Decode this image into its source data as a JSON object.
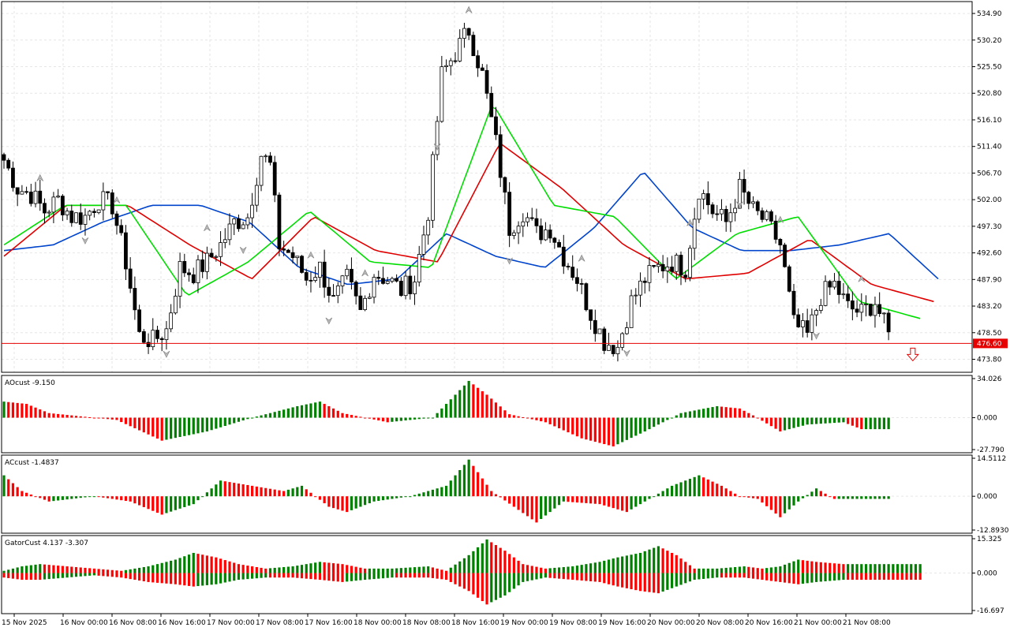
{
  "price_axis": {
    "ticks": [
      "534.90",
      "530.20",
      "525.50",
      "520.80",
      "516.10",
      "511.40",
      "506.70",
      "502.00",
      "497.30",
      "492.60",
      "487.90",
      "483.20",
      "478.50",
      "473.80"
    ],
    "current_price": "476.60",
    "current_color": "#e60000"
  },
  "panes": [
    {
      "label": "AOcust -9.150",
      "ticks": [
        "34.026",
        "0.000",
        "-27.790"
      ]
    },
    {
      "label": "ACcust -1.4837",
      "ticks": [
        "14.5112",
        "0.000",
        "-12.8930"
      ]
    },
    {
      "label": "GatorCust 4.137 -3.307",
      "ticks": [
        "15.325",
        "0.000",
        "-16.697"
      ]
    }
  ],
  "time_axis": [
    "15 Nov 2025",
    "16 Nov 00:00",
    "16 Nov 08:00",
    "16 Nov 16:00",
    "17 Nov 00:00",
    "17 Nov 08:00",
    "17 Nov 16:00",
    "18 Nov 00:00",
    "18 Nov 08:00",
    "18 Nov 16:00",
    "19 Nov 00:00",
    "19 Nov 08:00",
    "19 Nov 16:00",
    "20 Nov 00:00",
    "20 Nov 08:00",
    "20 Nov 16:00",
    "21 Nov 00:00",
    "21 Nov 08:00"
  ],
  "colors": {
    "up": "#007f00",
    "down": "#ff0000",
    "jaw": "#0044cc",
    "teeth": "#e00000",
    "lips": "#00dd00"
  },
  "chart_data": [
    {
      "type": "candlestick",
      "ylim": [
        471.5,
        537.0
      ],
      "price_anchors": [
        [
          0,
          509
        ],
        [
          3,
          504
        ],
        [
          6,
          503
        ],
        [
          9,
          500
        ],
        [
          12,
          502
        ],
        [
          15,
          499
        ],
        [
          18,
          499
        ],
        [
          21,
          502
        ],
        [
          24,
          501
        ],
        [
          27,
          491
        ],
        [
          30,
          478
        ],
        [
          33,
          477
        ],
        [
          36,
          479
        ],
        [
          39,
          490
        ],
        [
          42,
          489
        ],
        [
          45,
          491
        ],
        [
          48,
          494
        ],
        [
          51,
          498
        ],
        [
          54,
          499
        ],
        [
          57,
          510
        ],
        [
          59,
          508
        ],
        [
          61,
          494
        ],
        [
          64,
          492
        ],
        [
          67,
          488
        ],
        [
          70,
          490
        ],
        [
          73,
          484
        ],
        [
          76,
          488
        ],
        [
          79,
          482
        ],
        [
          82,
          489
        ],
        [
          85,
          488
        ],
        [
          88,
          486
        ],
        [
          91,
          488
        ],
        [
          94,
          500
        ],
        [
          97,
          524
        ],
        [
          100,
          528
        ],
        [
          103,
          532
        ],
        [
          106,
          524
        ],
        [
          109,
          512
        ],
        [
          112,
          497
        ],
        [
          115,
          500
        ],
        [
          118,
          496
        ],
        [
          121,
          497
        ],
        [
          124,
          492
        ],
        [
          127,
          488
        ],
        [
          130,
          482
        ],
        [
          133,
          477
        ],
        [
          136,
          476
        ],
        [
          139,
          484
        ],
        [
          142,
          488
        ],
        [
          145,
          490
        ],
        [
          148,
          491
        ],
        [
          151,
          490
        ],
        [
          154,
          504
        ],
        [
          157,
          500
        ],
        [
          160,
          498
        ],
        [
          163,
          504
        ],
        [
          166,
          500
        ],
        [
          169,
          498
        ],
        [
          172,
          494
        ],
        [
          175,
          480
        ],
        [
          178,
          478
        ],
        [
          181,
          485
        ],
        [
          184,
          487
        ],
        [
          187,
          483
        ],
        [
          190,
          482
        ],
        [
          193,
          484
        ],
        [
          196,
          478
        ]
      ],
      "moving_averages": [
        {
          "name": "jaw",
          "values_sampled": [
            493,
            494,
            498,
            501,
            501,
            498,
            490,
            487,
            488,
            496,
            492,
            490,
            497,
            507,
            497,
            493,
            493,
            494,
            496,
            488
          ]
        },
        {
          "name": "teeth",
          "values_sampled": [
            492,
            501,
            501,
            494,
            488,
            499,
            493,
            491,
            512,
            504,
            494,
            488,
            489,
            495,
            487,
            484
          ]
        },
        {
          "name": "lips",
          "values_sampled": [
            494,
            501,
            501,
            485,
            491,
            500,
            491,
            490,
            519,
            501,
            499,
            488,
            496,
            499,
            484,
            481
          ]
        }
      ]
    },
    {
      "type": "bar",
      "name": "AOcust",
      "ylim": [
        -27.79,
        34.026
      ],
      "anchors": [
        [
          0,
          14
        ],
        [
          5,
          12
        ],
        [
          10,
          4
        ],
        [
          15,
          2
        ],
        [
          25,
          -2
        ],
        [
          35,
          -20
        ],
        [
          45,
          -12
        ],
        [
          55,
          0
        ],
        [
          65,
          10
        ],
        [
          70,
          14
        ],
        [
          75,
          4
        ],
        [
          85,
          -4
        ],
        [
          95,
          0
        ],
        [
          100,
          20
        ],
        [
          103,
          32
        ],
        [
          107,
          20
        ],
        [
          112,
          3
        ],
        [
          120,
          -4
        ],
        [
          128,
          -18
        ],
        [
          135,
          -25
        ],
        [
          142,
          -12
        ],
        [
          150,
          4
        ],
        [
          158,
          10
        ],
        [
          163,
          8
        ],
        [
          166,
          2
        ],
        [
          172,
          -12
        ],
        [
          178,
          -6
        ],
        [
          186,
          -4
        ],
        [
          190,
          -10
        ]
      ]
    },
    {
      "type": "bar",
      "name": "ACcust",
      "ylim": [
        -12.893,
        14.5112
      ],
      "anchors": [
        [
          0,
          8
        ],
        [
          4,
          2
        ],
        [
          10,
          -2
        ],
        [
          15,
          -1
        ],
        [
          20,
          0
        ],
        [
          28,
          -2
        ],
        [
          35,
          -7
        ],
        [
          42,
          -3
        ],
        [
          48,
          6
        ],
        [
          55,
          4
        ],
        [
          62,
          2
        ],
        [
          66,
          4
        ],
        [
          72,
          -4
        ],
        [
          76,
          -6
        ],
        [
          82,
          -2
        ],
        [
          90,
          0
        ],
        [
          98,
          4
        ],
        [
          103,
          14
        ],
        [
          108,
          2
        ],
        [
          113,
          -4
        ],
        [
          118,
          -10
        ],
        [
          124,
          -2
        ],
        [
          132,
          -3
        ],
        [
          138,
          -6
        ],
        [
          142,
          -2
        ],
        [
          148,
          4
        ],
        [
          154,
          8
        ],
        [
          159,
          4
        ],
        [
          163,
          0
        ],
        [
          167,
          -1
        ],
        [
          172,
          -8
        ],
        [
          176,
          -2
        ],
        [
          180,
          3
        ],
        [
          184,
          -1
        ],
        [
          190,
          -1
        ]
      ]
    },
    {
      "type": "bar",
      "name": "GatorCust",
      "ylim": [
        -16.697,
        15.325
      ],
      "upper_anchors": [
        [
          0,
          1
        ],
        [
          4,
          3
        ],
        [
          8,
          4
        ],
        [
          14,
          3
        ],
        [
          20,
          2
        ],
        [
          26,
          1
        ],
        [
          32,
          3
        ],
        [
          38,
          6
        ],
        [
          42,
          9
        ],
        [
          47,
          7
        ],
        [
          52,
          4
        ],
        [
          58,
          2
        ],
        [
          64,
          3
        ],
        [
          70,
          5
        ],
        [
          75,
          4
        ],
        [
          80,
          2
        ],
        [
          86,
          2
        ],
        [
          94,
          3
        ],
        [
          98,
          1
        ],
        [
          103,
          8
        ],
        [
          107,
          15
        ],
        [
          111,
          10
        ],
        [
          115,
          4
        ],
        [
          120,
          2
        ],
        [
          126,
          3
        ],
        [
          132,
          5
        ],
        [
          136,
          7
        ],
        [
          141,
          9
        ],
        [
          145,
          12
        ],
        [
          149,
          8
        ],
        [
          153,
          2
        ],
        [
          158,
          2
        ],
        [
          164,
          3
        ],
        [
          168,
          2
        ],
        [
          172,
          3
        ],
        [
          176,
          6
        ],
        [
          180,
          5
        ],
        [
          186,
          4
        ],
        [
          193,
          4
        ]
      ],
      "lower_anchors": [
        [
          0,
          -2
        ],
        [
          4,
          -3
        ],
        [
          8,
          -3
        ],
        [
          14,
          -2
        ],
        [
          20,
          -1
        ],
        [
          26,
          -2
        ],
        [
          32,
          -4
        ],
        [
          38,
          -5
        ],
        [
          42,
          -6
        ],
        [
          47,
          -5
        ],
        [
          52,
          -3
        ],
        [
          58,
          -2
        ],
        [
          64,
          -2
        ],
        [
          70,
          -3
        ],
        [
          75,
          -4
        ],
        [
          80,
          -3
        ],
        [
          86,
          -2
        ],
        [
          94,
          -2
        ],
        [
          98,
          -3
        ],
        [
          103,
          -8
        ],
        [
          107,
          -14
        ],
        [
          111,
          -10
        ],
        [
          115,
          -4
        ],
        [
          120,
          -2
        ],
        [
          126,
          -3
        ],
        [
          132,
          -4
        ],
        [
          136,
          -6
        ],
        [
          141,
          -8
        ],
        [
          145,
          -9
        ],
        [
          149,
          -6
        ],
        [
          153,
          -3
        ],
        [
          158,
          -2
        ],
        [
          164,
          -2
        ],
        [
          168,
          -3
        ],
        [
          172,
          -4
        ],
        [
          176,
          -5
        ],
        [
          180,
          -4
        ],
        [
          186,
          -3
        ],
        [
          193,
          -3
        ]
      ]
    }
  ]
}
